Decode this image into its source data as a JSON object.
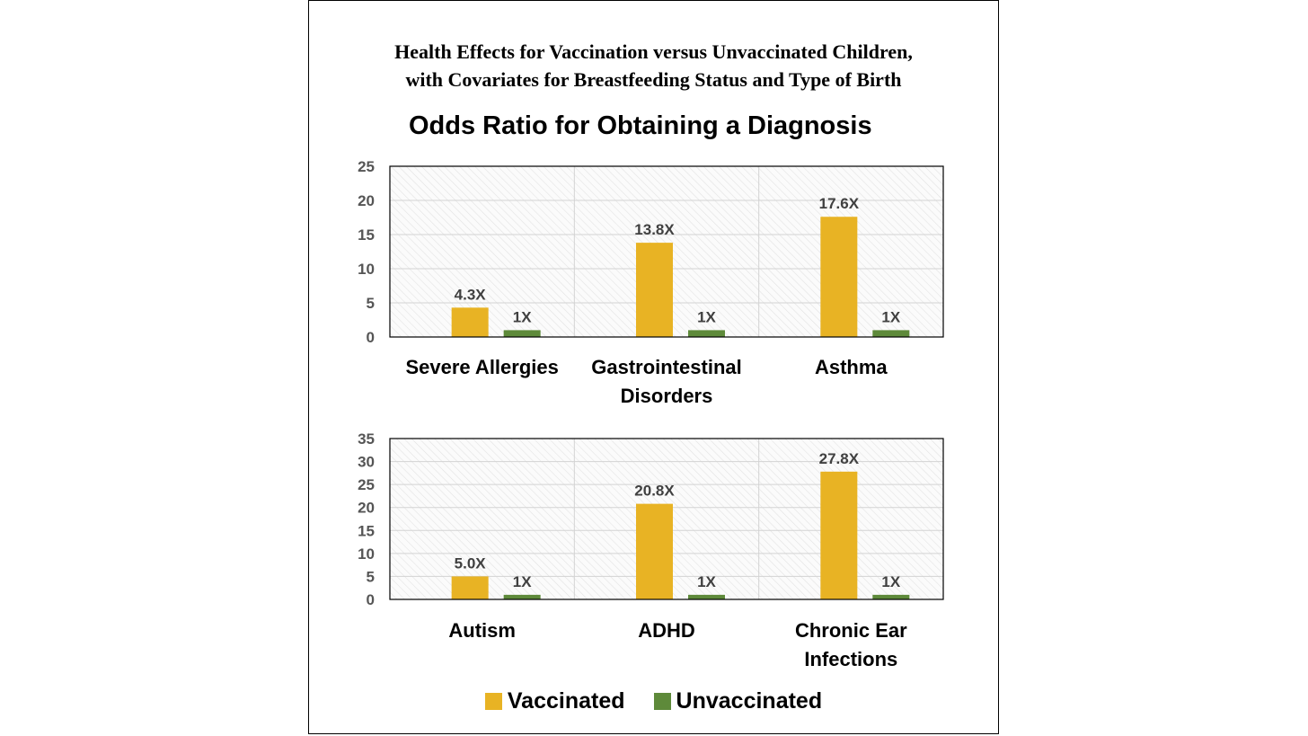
{
  "figure": {
    "title_lines": [
      "Health Effects for Vaccination versus Unvaccinated Children,",
      "with Covariates for Breastfeeding Status and Type of Birth"
    ],
    "subtitle": "Odds Ratio for Obtaining a Diagnosis",
    "legend": [
      {
        "label": "Vaccinated",
        "color": "#E8B324"
      },
      {
        "label": "Unvaccinated",
        "color": "#5E8A3A"
      }
    ]
  },
  "chart_data": [
    {
      "type": "bar",
      "categories": [
        [
          "Severe Allergies"
        ],
        [
          "Gastrointestinal",
          "Disorders"
        ],
        [
          "Asthma"
        ]
      ],
      "series": [
        {
          "name": "Vaccinated",
          "values": [
            4.3,
            13.8,
            17.6
          ],
          "labels": [
            "4.3X",
            "13.8X",
            "17.6X"
          ],
          "color": "#E8B324"
        },
        {
          "name": "Unvaccinated",
          "values": [
            1,
            1,
            1
          ],
          "labels": [
            "1X",
            "1X",
            "1X"
          ],
          "color": "#5E8A3A"
        }
      ],
      "yticks": [
        "0",
        "5",
        "10",
        "15",
        "20",
        "25"
      ],
      "ylim": [
        0,
        25
      ],
      "grid": true
    },
    {
      "type": "bar",
      "categories": [
        [
          "Autism"
        ],
        [
          "ADHD"
        ],
        [
          "Chronic Ear",
          "Infections"
        ]
      ],
      "series": [
        {
          "name": "Vaccinated",
          "values": [
            5.0,
            20.8,
            27.8
          ],
          "labels": [
            "5.0X",
            "20.8X",
            "27.8X"
          ],
          "color": "#E8B324"
        },
        {
          "name": "Unvaccinated",
          "values": [
            1,
            1,
            1
          ],
          "labels": [
            "1X",
            "1X",
            "1X"
          ],
          "color": "#5E8A3A"
        }
      ],
      "yticks": [
        "0",
        "5",
        "10",
        "15",
        "20",
        "25",
        "30",
        "35"
      ],
      "ylim": [
        0,
        35
      ],
      "grid": true
    }
  ]
}
